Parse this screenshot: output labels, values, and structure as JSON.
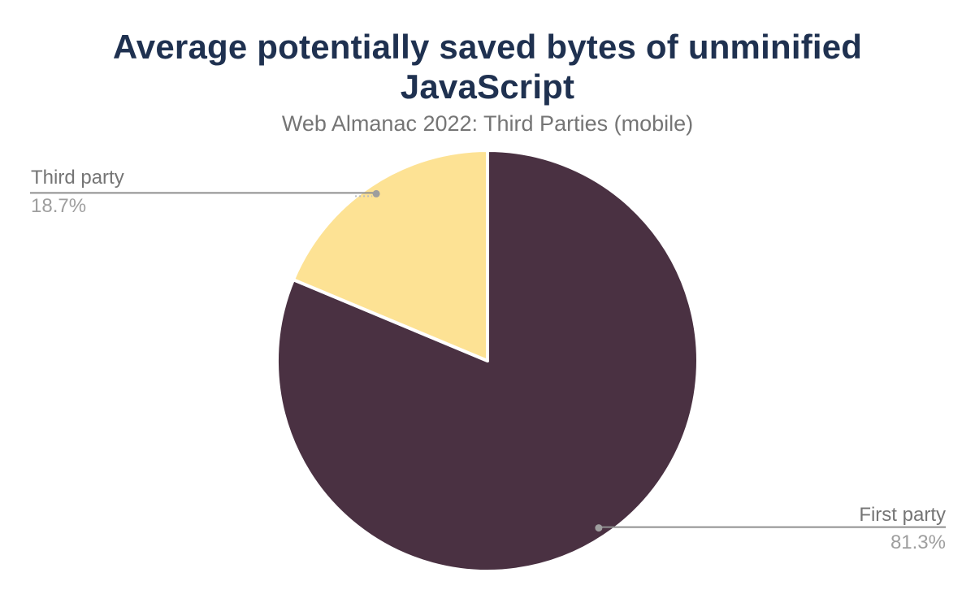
{
  "header": {
    "title": "Average potentially saved bytes of unminified JavaScript",
    "subtitle": "Web Almanac 2022: Third Parties (mobile)"
  },
  "colors": {
    "title_text": "#1f3150",
    "subtitle_text": "#757575",
    "label_text": "#757575",
    "percent_text": "#9e9e9e",
    "leader_line": "#8f8f8f",
    "leader_dot": "#9e9e9e",
    "slice_gap_stroke": "#ffffff",
    "background": "#ffffff"
  },
  "chart_data": {
    "type": "pie",
    "title": "Average potentially saved bytes of unminified JavaScript",
    "subtitle": "Web Almanac 2022: Third Parties (mobile)",
    "categories": [
      "First party",
      "Third party"
    ],
    "values": [
      81.3,
      18.7
    ],
    "unit": "%",
    "slice_colors": [
      "#4a3142",
      "#fde294"
    ],
    "start_angle_deg": 0,
    "direction": "clockwise",
    "legend_position": "none",
    "grid": false,
    "labels": [
      {
        "name": "First party",
        "percent": "81.3%",
        "side": "right"
      },
      {
        "name": "Third party",
        "percent": "18.7%",
        "side": "left"
      }
    ]
  }
}
